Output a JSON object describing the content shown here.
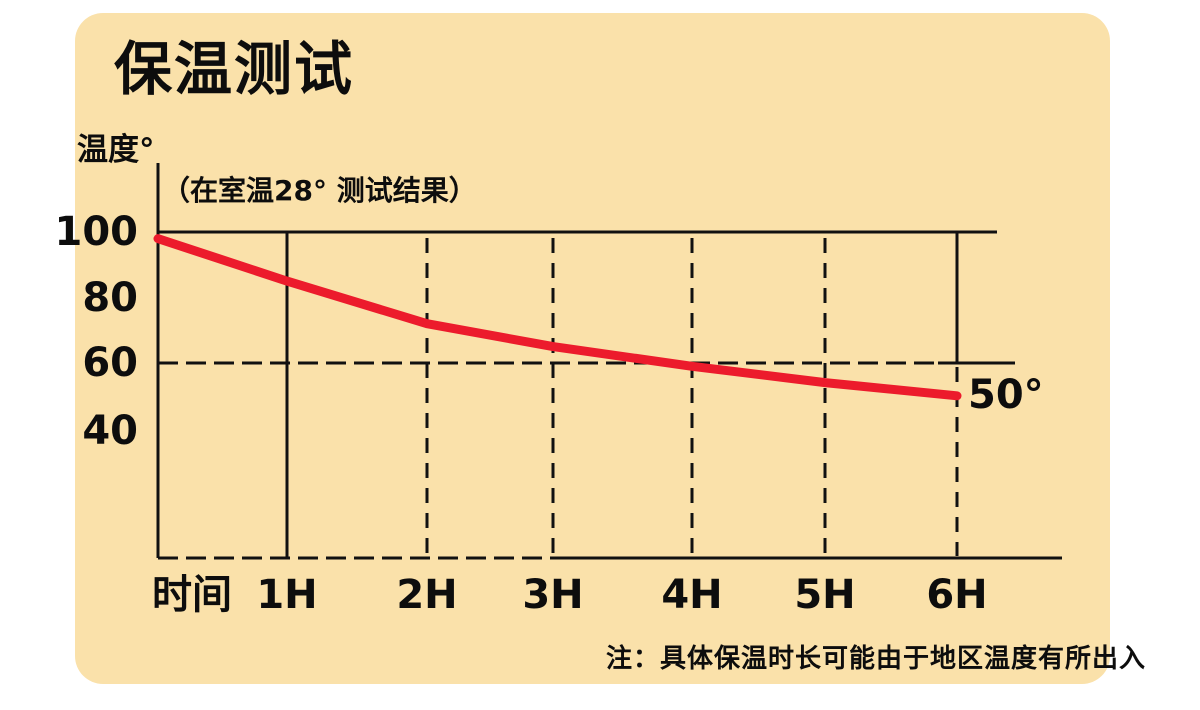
{
  "chart_data": {
    "type": "line",
    "title": "保温测试",
    "ylabel": "温度°",
    "subtitle": "（在室温28° 测试结果）",
    "note": "注：具体保温时长可能由于地区温度有所出入",
    "xticks": [
      "时间",
      "1H",
      "2H",
      "3H",
      "4H",
      "5H",
      "6H"
    ],
    "yticks": [
      "100",
      "80",
      "60",
      "40"
    ],
    "x_hours": [
      0,
      1,
      2,
      3,
      4,
      5,
      6
    ],
    "values": [
      98,
      85,
      72,
      65,
      59,
      54,
      50
    ],
    "end_label": "50°",
    "ylim": [
      40,
      100
    ],
    "legend": "none",
    "grid": "solid line at 100, dashed line at 60, dashed hour verticals (1H solid, 6H solid above 60)",
    "colors": {
      "line": "#ec1b2c",
      "panel_background": "#fae1aa",
      "axis": "#111111"
    }
  }
}
